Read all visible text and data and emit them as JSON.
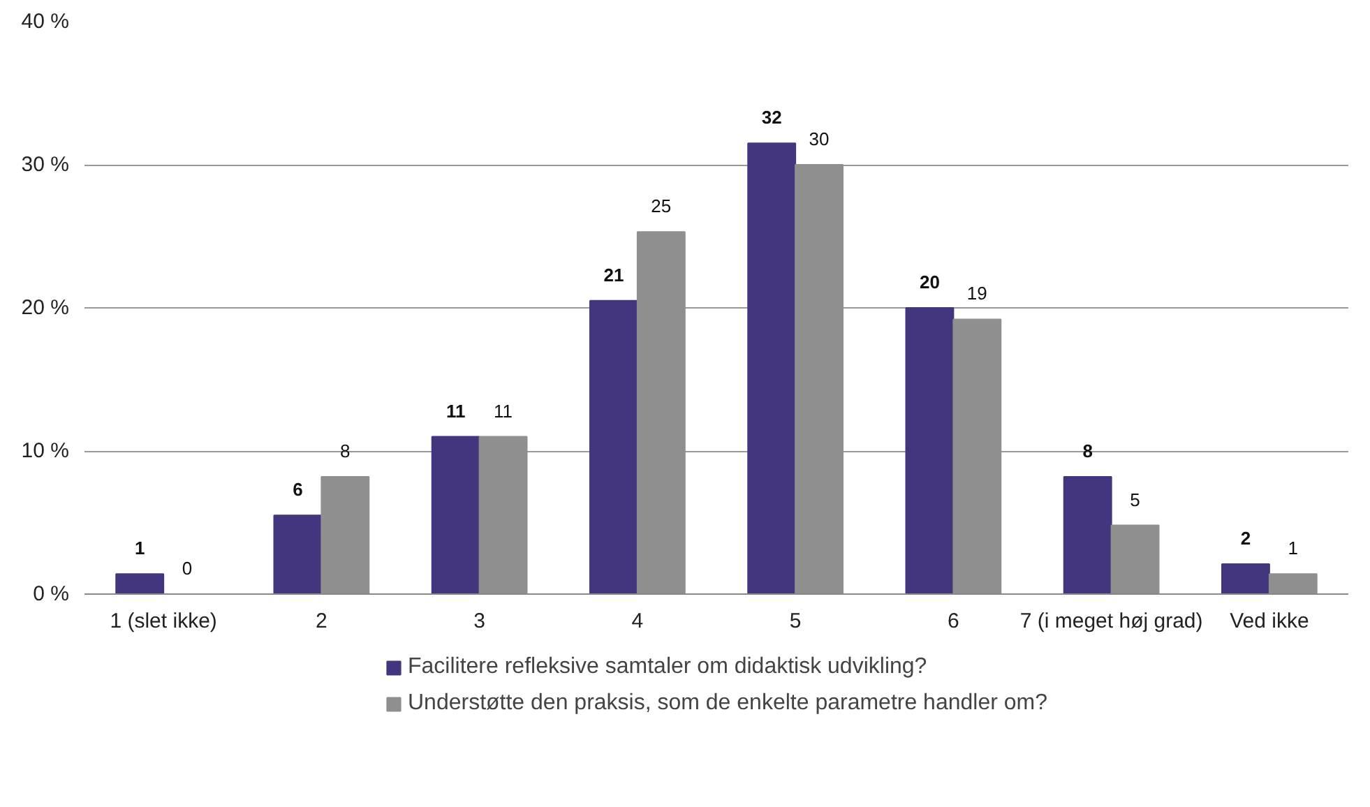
{
  "chart_data": {
    "type": "bar",
    "categories": [
      "1 (slet ikke)",
      "2",
      "3",
      "4",
      "5",
      "6",
      "7 (i meget høj grad)",
      "Ved ikke"
    ],
    "series": [
      {
        "name": "Facilitere refleksive samtaler om didaktisk udvikling?",
        "color": "#43367f",
        "values": [
          1.4,
          5.5,
          11,
          20.5,
          31.5,
          20,
          8.2,
          2.1
        ],
        "value_labels": [
          "1",
          "6",
          "11",
          "21",
          "32",
          "20",
          "8",
          "2"
        ]
      },
      {
        "name": "Understøtte den praksis, som de enkelte parametre handler om?",
        "color": "#8f8f8f",
        "values": [
          0,
          8.2,
          11,
          25.3,
          30,
          19.2,
          4.8,
          1.4
        ],
        "value_labels": [
          "0",
          "8",
          "11",
          "25",
          "30",
          "19",
          "5",
          "1"
        ]
      }
    ],
    "ylim": [
      0,
      40
    ],
    "yticks": [
      {
        "value": 0,
        "label": "0 %"
      },
      {
        "value": 10,
        "label": "10 %"
      },
      {
        "value": 20,
        "label": "20 %"
      },
      {
        "value": 30,
        "label": "30 %"
      },
      {
        "value": 40,
        "label": "40 %"
      }
    ],
    "grid": "y",
    "legend": "bottom"
  }
}
